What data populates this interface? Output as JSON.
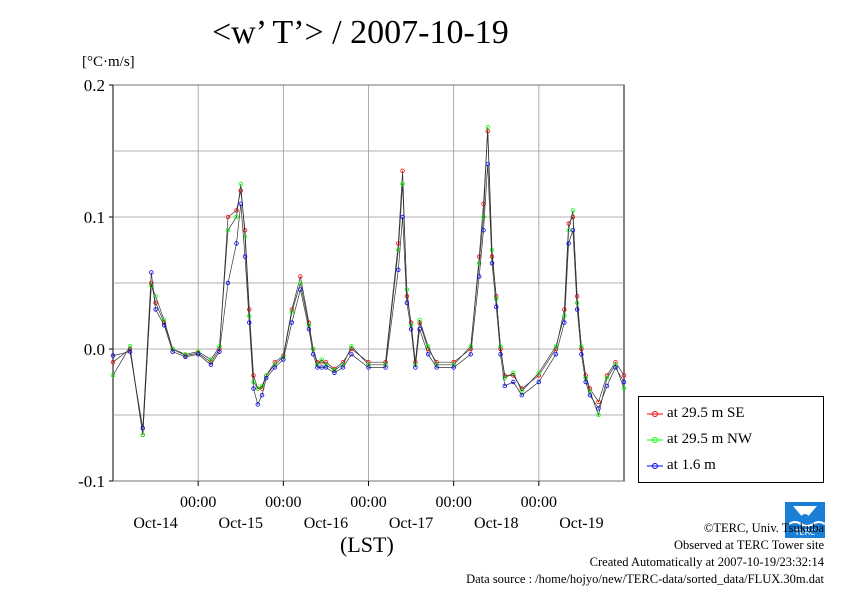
{
  "title": "<w’ T’> / 2007-10-19",
  "unit_label": "[°C·m/s]",
  "xlabel": "(LST)",
  "legend": [
    {
      "label": "at 29.5 m SE",
      "color": "#ff0000"
    },
    {
      "label": "at 29.5 m NW",
      "color": "#00ff00"
    },
    {
      "label": "at 1.6 m",
      "color": "#0000ff"
    }
  ],
  "credits": {
    "line1": "©TERC, Univ. Tsukuba",
    "line2": "Observed at TERC Tower site",
    "line3": "Created Automatically at 2007-10-19/23:32:14",
    "line4": "Data source : /home/hojyo/new/TERC-data/sorted_data/FLUX.30m.dat"
  },
  "logo_text": "TERC",
  "chart_data": {
    "type": "line",
    "ylim": [
      -0.1,
      0.2
    ],
    "yticks": [
      -0.1,
      0.0,
      0.1,
      0.2
    ],
    "ytick_labels": [
      "-0.1",
      "0.0",
      "0.1",
      "0.2"
    ],
    "xlim": [
      0,
      6
    ],
    "xtick_positions": [
      1,
      2,
      3,
      4,
      5
    ],
    "xtick_time_labels": [
      "00:00",
      "00:00",
      "00:00",
      "00:00",
      "00:00"
    ],
    "xtick_day_labels": [
      "Oct-14",
      "Oct-15",
      "Oct-16",
      "Oct-17",
      "Oct-18",
      "Oct-19"
    ],
    "x_units": "days since Oct-13 12:00 LST",
    "grid": true,
    "legend_position": "right-bottom",
    "series": [
      {
        "name": "at 29.5 m SE",
        "color": "#ff0000",
        "x": [
          0.0,
          0.2,
          0.35,
          0.45,
          0.5,
          0.6,
          0.7,
          0.85,
          1.0,
          1.15,
          1.25,
          1.35,
          1.45,
          1.5,
          1.55,
          1.6,
          1.65,
          1.7,
          1.75,
          1.8,
          1.9,
          2.0,
          2.1,
          2.2,
          2.3,
          2.35,
          2.4,
          2.45,
          2.5,
          2.6,
          2.7,
          2.8,
          3.0,
          3.2,
          3.35,
          3.4,
          3.45,
          3.5,
          3.55,
          3.6,
          3.7,
          3.8,
          4.0,
          4.2,
          4.3,
          4.35,
          4.4,
          4.45,
          4.5,
          4.55,
          4.6,
          4.7,
          4.8,
          5.0,
          5.2,
          5.3,
          5.35,
          5.4,
          5.45,
          5.5,
          5.55,
          5.6,
          5.7,
          5.8,
          5.9,
          6.0
        ],
        "y": [
          -0.01,
          0.0,
          -0.065,
          0.05,
          0.035,
          0.02,
          0.0,
          -0.005,
          -0.003,
          -0.01,
          0.0,
          0.1,
          0.105,
          0.12,
          0.09,
          0.03,
          -0.02,
          -0.03,
          -0.03,
          -0.02,
          -0.01,
          -0.005,
          0.03,
          0.055,
          0.02,
          0.0,
          -0.01,
          -0.01,
          -0.01,
          -0.015,
          -0.01,
          0.0,
          -0.01,
          -0.01,
          0.08,
          0.135,
          0.04,
          0.02,
          -0.01,
          0.02,
          0.0,
          -0.01,
          -0.01,
          0.0,
          0.07,
          0.11,
          0.165,
          0.07,
          0.04,
          0.0,
          -0.02,
          -0.02,
          -0.03,
          -0.02,
          0.0,
          0.03,
          0.095,
          0.1,
          0.04,
          0.0,
          -0.02,
          -0.03,
          -0.04,
          -0.02,
          -0.01,
          -0.02
        ]
      },
      {
        "name": "at 29.5 m NW",
        "color": "#00ff00",
        "x": [
          0.0,
          0.2,
          0.35,
          0.45,
          0.5,
          0.6,
          0.7,
          0.85,
          1.0,
          1.15,
          1.25,
          1.35,
          1.45,
          1.5,
          1.55,
          1.6,
          1.65,
          1.7,
          1.75,
          1.8,
          1.9,
          2.0,
          2.1,
          2.2,
          2.3,
          2.35,
          2.4,
          2.45,
          2.5,
          2.6,
          2.7,
          2.8,
          3.0,
          3.2,
          3.35,
          3.4,
          3.45,
          3.5,
          3.55,
          3.6,
          3.7,
          3.8,
          4.0,
          4.2,
          4.3,
          4.35,
          4.4,
          4.45,
          4.5,
          4.55,
          4.6,
          4.7,
          4.8,
          5.0,
          5.2,
          5.3,
          5.35,
          5.4,
          5.45,
          5.5,
          5.55,
          5.6,
          5.7,
          5.8,
          5.9,
          6.0
        ],
        "y": [
          -0.02,
          0.002,
          -0.065,
          0.048,
          0.04,
          0.022,
          0.0,
          -0.004,
          -0.002,
          -0.008,
          0.002,
          0.09,
          0.1,
          0.125,
          0.085,
          0.025,
          -0.025,
          -0.03,
          -0.028,
          -0.02,
          -0.012,
          -0.006,
          0.028,
          0.05,
          0.018,
          0.0,
          -0.012,
          -0.008,
          -0.012,
          -0.016,
          -0.012,
          0.002,
          -0.012,
          -0.012,
          0.075,
          0.125,
          0.045,
          0.018,
          -0.012,
          0.022,
          0.002,
          -0.012,
          -0.012,
          0.002,
          0.065,
          0.1,
          0.168,
          0.075,
          0.038,
          0.002,
          -0.022,
          -0.018,
          -0.032,
          -0.018,
          0.002,
          0.025,
          0.09,
          0.105,
          0.035,
          0.002,
          -0.022,
          -0.032,
          -0.05,
          -0.022,
          -0.012,
          -0.03
        ]
      },
      {
        "name": "at 1.6 m",
        "color": "#0000ff",
        "x": [
          0.0,
          0.2,
          0.35,
          0.45,
          0.5,
          0.6,
          0.7,
          0.85,
          1.0,
          1.15,
          1.25,
          1.35,
          1.45,
          1.5,
          1.55,
          1.6,
          1.65,
          1.7,
          1.75,
          1.8,
          1.9,
          2.0,
          2.1,
          2.2,
          2.3,
          2.35,
          2.4,
          2.45,
          2.5,
          2.6,
          2.7,
          2.8,
          3.0,
          3.2,
          3.35,
          3.4,
          3.45,
          3.5,
          3.55,
          3.6,
          3.7,
          3.8,
          4.0,
          4.2,
          4.3,
          4.35,
          4.4,
          4.45,
          4.5,
          4.55,
          4.6,
          4.7,
          4.8,
          5.0,
          5.2,
          5.3,
          5.35,
          5.4,
          5.45,
          5.5,
          5.55,
          5.6,
          5.7,
          5.8,
          5.9,
          6.0
        ],
        "y": [
          -0.005,
          -0.002,
          -0.06,
          0.058,
          0.03,
          0.018,
          -0.002,
          -0.006,
          -0.004,
          -0.012,
          -0.002,
          0.05,
          0.08,
          0.11,
          0.07,
          0.02,
          -0.03,
          -0.042,
          -0.035,
          -0.022,
          -0.014,
          -0.008,
          0.02,
          0.045,
          0.015,
          -0.004,
          -0.014,
          -0.014,
          -0.014,
          -0.018,
          -0.014,
          -0.004,
          -0.014,
          -0.014,
          0.06,
          0.1,
          0.035,
          0.015,
          -0.014,
          0.015,
          -0.004,
          -0.014,
          -0.014,
          -0.004,
          0.055,
          0.09,
          0.14,
          0.065,
          0.032,
          -0.004,
          -0.028,
          -0.025,
          -0.035,
          -0.025,
          -0.004,
          0.02,
          0.08,
          0.09,
          0.03,
          -0.004,
          -0.025,
          -0.035,
          -0.045,
          -0.028,
          -0.014,
          -0.025
        ]
      }
    ]
  }
}
